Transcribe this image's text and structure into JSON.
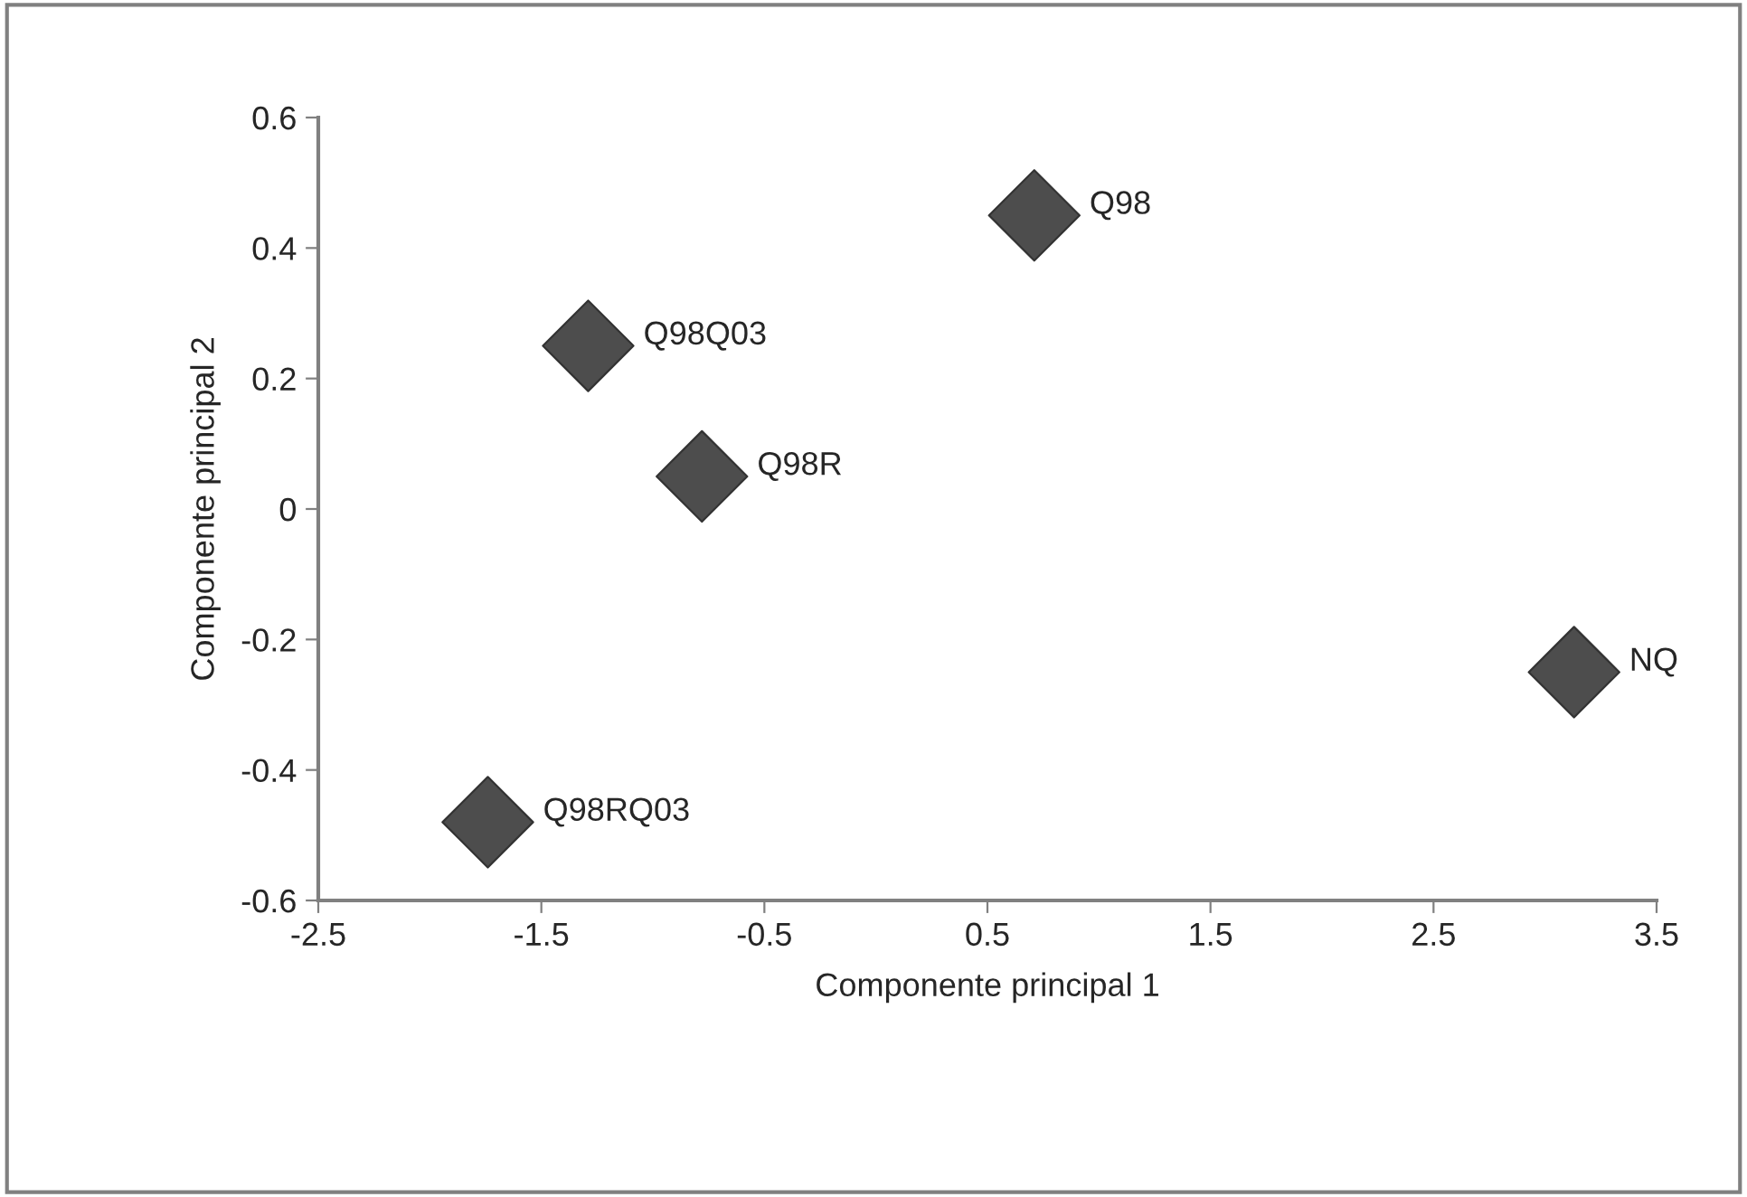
{
  "chart_data": {
    "type": "scatter",
    "xlabel": "Componente principal 1",
    "ylabel": "Componente principal 2",
    "x": [
      0.71,
      -1.29,
      -0.78,
      3.13,
      -1.74
    ],
    "series": [
      {
        "color": "#4d4d4d",
        "values": [
          0.45,
          0.25,
          0.05,
          -0.25,
          -0.48
        ]
      }
    ],
    "marker": "diamond",
    "annotations": [
      {
        "text": "Q98",
        "x": 0.71,
        "y": 0.45
      },
      {
        "text": "Q98Q03",
        "x": -1.29,
        "y": 0.25
      },
      {
        "text": "Q98R",
        "x": -0.78,
        "y": 0.05
      },
      {
        "text": "NQ",
        "x": 3.13,
        "y": -0.25
      },
      {
        "text": "Q98RQ03",
        "x": -1.74,
        "y": -0.48
      }
    ],
    "xlim": [
      -2.5,
      3.5
    ],
    "xticks": [
      {
        "value": -2.5,
        "label": "-2.5"
      },
      {
        "value": -1.5,
        "label": "-1.5"
      },
      {
        "value": -0.5,
        "label": "-0.5"
      },
      0.5,
      1.5,
      2.5,
      3.5
    ],
    "ylim": [
      -0.6,
      0.6
    ],
    "yticks": [
      {
        "value": -0.6,
        "label": "-0.6"
      },
      {
        "value": -0.4,
        "label": "-0.4"
      },
      {
        "value": -0.2,
        "label": "-0.2"
      },
      0,
      0.2,
      0.4,
      0.6
    ],
    "grid": false,
    "legend": false
  }
}
